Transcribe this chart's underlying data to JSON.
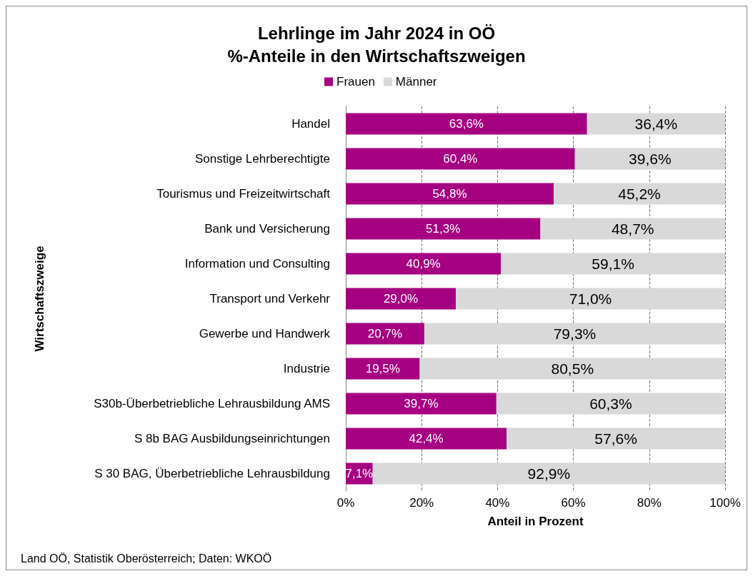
{
  "chart_data": {
    "type": "bar",
    "orientation": "horizontal",
    "stacked": true,
    "title": "Lehrlinge im Jahr 2024 in OÖ",
    "subtitle": "%-Anteile in den Wirtschaftszweigen",
    "xlabel": "Anteil in Prozent",
    "ylabel": "Wirtschaftszweige",
    "categories": [
      "Handel",
      "Sonstige Lehrberechtigte",
      "Tourismus und Freizeitwirtschaft",
      "Bank und Versicherung",
      "Information und Consulting",
      "Transport und Verkehr",
      "Gewerbe und Handwerk",
      "Industrie",
      "S30b-Überbetriebliche Lehrausbildung AMS",
      "S 8b BAG Ausbildungseinrichtungen",
      "S 30 BAG, Überbetriebliche Lehrausbildung"
    ],
    "series": [
      {
        "name": "Frauen",
        "color": "#a50080",
        "values": [
          63.6,
          60.4,
          54.8,
          51.3,
          40.9,
          29.0,
          20.7,
          19.5,
          39.7,
          42.4,
          7.1
        ],
        "value_labels": [
          "63,6%",
          "60,4%",
          "54,8%",
          "51,3%",
          "40,9%",
          "29,0%",
          "20,7%",
          "19,5%",
          "39,7%",
          "42,4%",
          "7,1%"
        ]
      },
      {
        "name": "Männer",
        "color": "#d9d9d9",
        "values": [
          36.4,
          39.6,
          45.2,
          48.7,
          59.1,
          71.0,
          79.3,
          80.5,
          60.3,
          57.6,
          92.9
        ],
        "value_labels": [
          "36,4%",
          "39,6%",
          "45,2%",
          "48,7%",
          "59,1%",
          "71,0%",
          "79,3%",
          "80,5%",
          "60,3%",
          "57,6%",
          "92,9%"
        ]
      }
    ],
    "xlim": [
      0,
      100
    ],
    "xticks": [
      {
        "value": 0,
        "label": "0%"
      },
      {
        "value": 20,
        "label": "20%"
      },
      {
        "value": 40,
        "label": "40%"
      },
      {
        "value": 60,
        "label": "60%"
      },
      {
        "value": 80,
        "label": "80%"
      },
      {
        "value": 100,
        "label": "100%"
      }
    ],
    "grid": "x",
    "legend": "top",
    "annotations": [
      "Land OÖ, Statistik Oberösterreich; Daten: WKOÖ"
    ]
  }
}
